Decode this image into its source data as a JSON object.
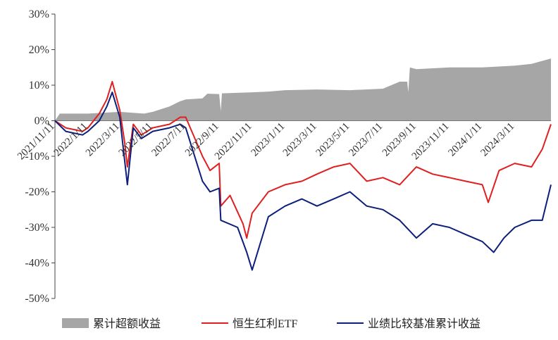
{
  "chart_data": {
    "type": "area+line",
    "title": "",
    "xlabel": "",
    "ylabel": "",
    "ylim": [
      -50,
      30
    ],
    "y_ticks": [
      30,
      20,
      10,
      0,
      -10,
      -20,
      -30,
      -40,
      -50
    ],
    "y_tick_labels": [
      "30%",
      "20%",
      "10%",
      "0%",
      "-10%",
      "-20%",
      "-30%",
      "-40%",
      "-50%"
    ],
    "x_tick_labels": [
      "2021/11/11",
      "2022/1/11",
      "2022/3/11",
      "2022/5/11",
      "2022/7/11",
      "2022/9/11",
      "2022/11/11",
      "2023/1/11",
      "2023/3/11",
      "2023/5/11",
      "2023/7/11",
      "2023/9/11",
      "2023/11/11",
      "2024/1/11",
      "2024/3/11"
    ],
    "x_range": [
      "2021/11/11",
      "2024/5/17"
    ],
    "legend_position": "bottom",
    "grid": false,
    "series": [
      {
        "name": "累计超额收益",
        "style": "area",
        "color": "#a6a6a6",
        "points": [
          [
            "2021/11/11",
            0
          ],
          [
            "2021/11/20",
            2
          ],
          [
            "2022/1/11",
            2
          ],
          [
            "2022/3/11",
            2.5
          ],
          [
            "2022/4/25",
            2
          ],
          [
            "2022/5/11",
            2.5
          ],
          [
            "2022/6/11",
            4
          ],
          [
            "2022/7/01",
            5.5
          ],
          [
            "2022/7/11",
            6
          ],
          [
            "2022/8/11",
            6.3
          ],
          [
            "2022/8/20",
            7.6
          ],
          [
            "2022/9/11",
            7.5
          ],
          [
            "2022/9/14",
            2.7
          ],
          [
            "2022/9/16",
            7.7
          ],
          [
            "2022/11/11",
            8
          ],
          [
            "2022/12/11",
            8.2
          ],
          [
            "2023/1/11",
            8.6
          ],
          [
            "2023/3/11",
            8.8
          ],
          [
            "2023/5/11",
            8.6
          ],
          [
            "2023/7/11",
            9
          ],
          [
            "2023/8/11",
            11
          ],
          [
            "2023/8/25",
            11
          ],
          [
            "2023/8/27",
            8
          ],
          [
            "2023/8/30",
            15
          ],
          [
            "2023/9/11",
            14.5
          ],
          [
            "2023/11/11",
            15
          ],
          [
            "2024/1/11",
            15
          ],
          [
            "2024/3/11",
            15.5
          ],
          [
            "2024/4/11",
            16
          ],
          [
            "2024/5/17",
            17.5
          ]
        ]
      },
      {
        "name": "恒生红利ETF",
        "style": "line",
        "color": "#e02020",
        "points": [
          [
            "2021/11/11",
            0
          ],
          [
            "2021/12/01",
            -2
          ],
          [
            "2022/1/01",
            -3
          ],
          [
            "2022/1/11",
            -2
          ],
          [
            "2022/2/01",
            2
          ],
          [
            "2022/2/15",
            6
          ],
          [
            "2022/2/25",
            11
          ],
          [
            "2022/3/11",
            3
          ],
          [
            "2022/3/20",
            -6
          ],
          [
            "2022/3/25",
            -13
          ],
          [
            "2022/4/05",
            -1
          ],
          [
            "2022/4/20",
            -4
          ],
          [
            "2022/5/11",
            -2
          ],
          [
            "2022/6/11",
            -1
          ],
          [
            "2022/7/01",
            1
          ],
          [
            "2022/7/11",
            1
          ],
          [
            "2022/8/11",
            -10
          ],
          [
            "2022/8/25",
            -14
          ],
          [
            "2022/9/11",
            -12
          ],
          [
            "2022/9/14",
            -24
          ],
          [
            "2022/10/01",
            -21
          ],
          [
            "2022/10/25",
            -29
          ],
          [
            "2022/11/01",
            -33
          ],
          [
            "2022/11/11",
            -26
          ],
          [
            "2022/12/11",
            -20
          ],
          [
            "2023/1/11",
            -18
          ],
          [
            "2023/2/11",
            -17
          ],
          [
            "2023/3/11",
            -15
          ],
          [
            "2023/4/11",
            -13
          ],
          [
            "2023/5/11",
            -12
          ],
          [
            "2023/6/11",
            -17
          ],
          [
            "2023/7/11",
            -16
          ],
          [
            "2023/8/11",
            -18
          ],
          [
            "2023/9/11",
            -13
          ],
          [
            "2023/10/11",
            -15
          ],
          [
            "2023/11/11",
            -16
          ],
          [
            "2023/12/11",
            -17
          ],
          [
            "2024/1/11",
            -18
          ],
          [
            "2024/1/22",
            -23
          ],
          [
            "2024/2/11",
            -14
          ],
          [
            "2024/3/11",
            -12
          ],
          [
            "2024/4/11",
            -13
          ],
          [
            "2024/5/01",
            -8
          ],
          [
            "2024/5/17",
            -1
          ]
        ]
      },
      {
        "name": "业绩比较基准累计收益",
        "style": "line",
        "color": "#0c1f7a",
        "points": [
          [
            "2021/11/11",
            0
          ],
          [
            "2021/12/01",
            -3
          ],
          [
            "2022/1/01",
            -4
          ],
          [
            "2022/1/11",
            -3
          ],
          [
            "2022/2/01",
            0
          ],
          [
            "2022/2/15",
            4
          ],
          [
            "2022/2/25",
            8
          ],
          [
            "2022/3/11",
            1
          ],
          [
            "2022/3/25",
            -18
          ],
          [
            "2022/4/05",
            -2
          ],
          [
            "2022/4/20",
            -5
          ],
          [
            "2022/5/11",
            -3
          ],
          [
            "2022/6/11",
            -2
          ],
          [
            "2022/7/01",
            -1
          ],
          [
            "2022/7/11",
            -2
          ],
          [
            "2022/8/11",
            -17
          ],
          [
            "2022/8/25",
            -20
          ],
          [
            "2022/9/11",
            -19
          ],
          [
            "2022/9/14",
            -28
          ],
          [
            "2022/10/15",
            -30
          ],
          [
            "2022/11/01",
            -37
          ],
          [
            "2022/11/11",
            -42
          ],
          [
            "2022/12/11",
            -27
          ],
          [
            "2023/1/11",
            -24
          ],
          [
            "2023/2/11",
            -22
          ],
          [
            "2023/3/11",
            -24
          ],
          [
            "2023/4/11",
            -22
          ],
          [
            "2023/5/11",
            -20
          ],
          [
            "2023/6/11",
            -24
          ],
          [
            "2023/7/11",
            -25
          ],
          [
            "2023/8/11",
            -28
          ],
          [
            "2023/9/11",
            -33
          ],
          [
            "2023/10/11",
            -29
          ],
          [
            "2023/11/11",
            -30
          ],
          [
            "2023/12/11",
            -32
          ],
          [
            "2024/1/11",
            -34
          ],
          [
            "2024/2/01",
            -37
          ],
          [
            "2024/2/20",
            -33
          ],
          [
            "2024/3/11",
            -30
          ],
          [
            "2024/4/11",
            -28
          ],
          [
            "2024/5/01",
            -28
          ],
          [
            "2024/5/17",
            -18
          ]
        ]
      }
    ]
  }
}
